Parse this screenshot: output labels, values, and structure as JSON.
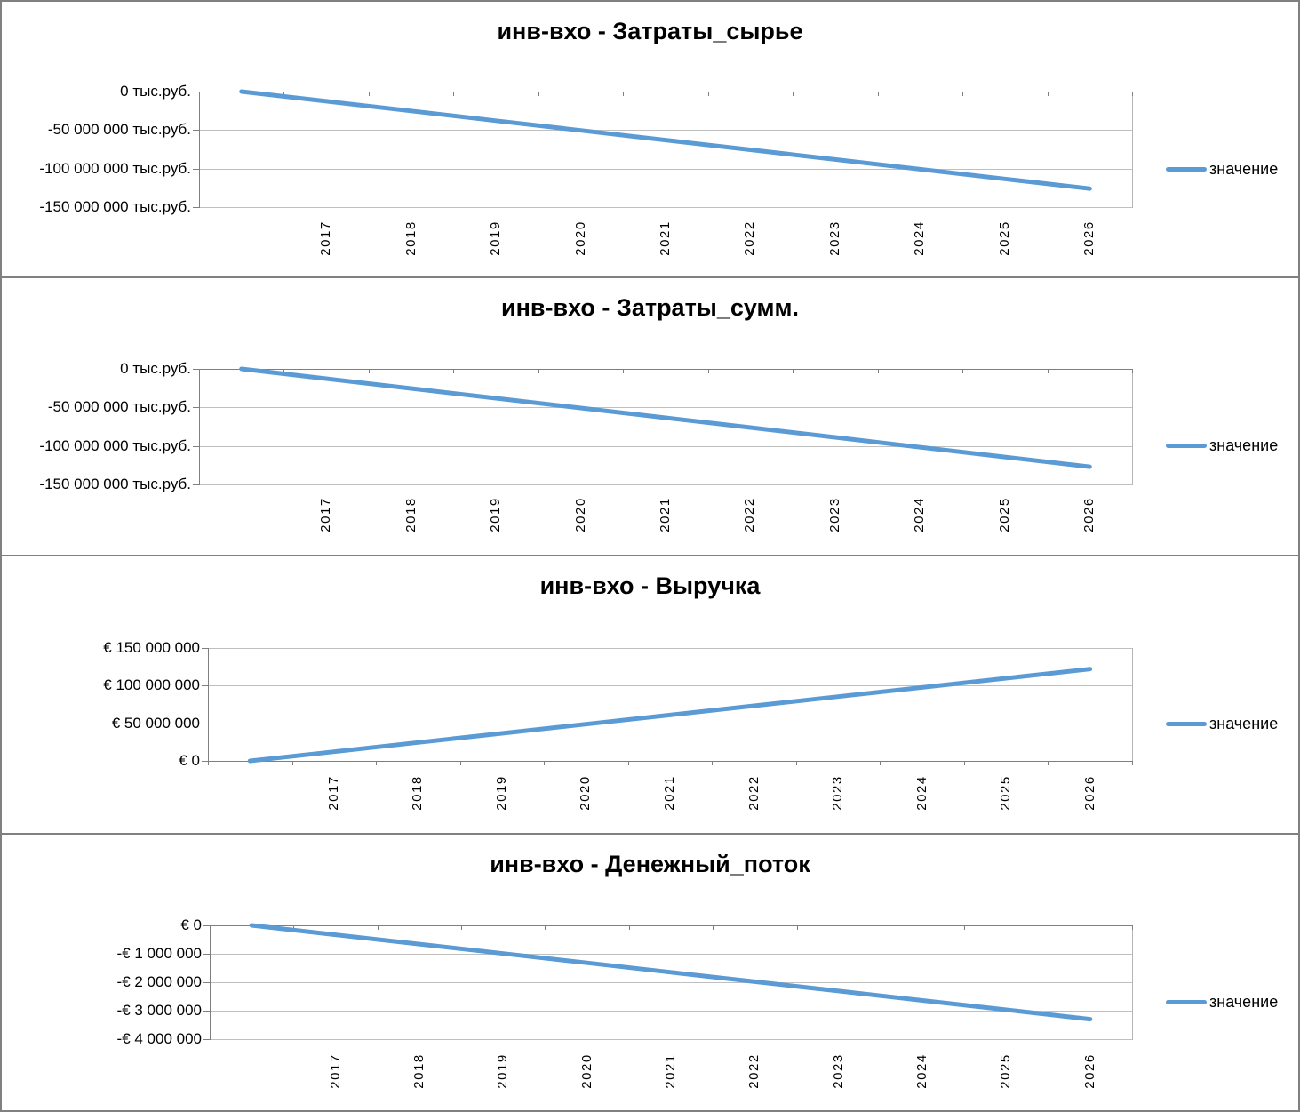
{
  "colors": {
    "series_line": "#5b9bd5",
    "gridline": "#bfbfbf",
    "axis": "#7f7f7f",
    "text": "#000000"
  },
  "chart_data": [
    {
      "type": "line",
      "title": "инв-вхо - Затраты_сырье",
      "legend_label": "значение",
      "legend_position": "right",
      "grid": true,
      "y_unit": "тыс.руб.",
      "ylim": [
        -150000000,
        0
      ],
      "categories": [
        "",
        "2017",
        "2018",
        "2019",
        "2020",
        "2021",
        "2022",
        "2023",
        "2024",
        "2025",
        "2026"
      ],
      "y_ticks": [
        {
          "label": "0 тыс.руб.",
          "value": 0
        },
        {
          "label": "-50 000 000 тыс.руб.",
          "value": -50000000
        },
        {
          "label": "-100 000 000 тыс.руб.",
          "value": -100000000
        },
        {
          "label": "-150 000 000 тыс.руб.",
          "value": -150000000
        }
      ],
      "series": [
        {
          "name": "значение",
          "values": [
            0,
            -12600000,
            -25200000,
            -37800000,
            -50400000,
            -63000000,
            -75600000,
            -88200000,
            -100800000,
            -113400000,
            -126000000
          ]
        }
      ]
    },
    {
      "type": "line",
      "title": "инв-вхо - Затраты_сумм.",
      "legend_label": "значение",
      "legend_position": "right",
      "grid": true,
      "y_unit": "тыс.руб.",
      "ylim": [
        -150000000,
        0
      ],
      "categories": [
        "",
        "2017",
        "2018",
        "2019",
        "2020",
        "2021",
        "2022",
        "2023",
        "2024",
        "2025",
        "2026"
      ],
      "y_ticks": [
        {
          "label": "0 тыс.руб.",
          "value": 0
        },
        {
          "label": "-50 000 000 тыс.руб.",
          "value": -50000000
        },
        {
          "label": "-100 000 000 тыс.руб.",
          "value": -100000000
        },
        {
          "label": "-150 000 000 тыс.руб.",
          "value": -150000000
        }
      ],
      "series": [
        {
          "name": "значение",
          "values": [
            0,
            -12700000,
            -25400000,
            -38100000,
            -50800000,
            -63500000,
            -76200000,
            -88900000,
            -101600000,
            -114300000,
            -127000000
          ]
        }
      ]
    },
    {
      "type": "line",
      "title": "инв-вхо - Выручка",
      "legend_label": "значение",
      "legend_position": "right",
      "grid": true,
      "y_unit": "€",
      "ylim": [
        0,
        150000000
      ],
      "categories": [
        "",
        "2017",
        "2018",
        "2019",
        "2020",
        "2021",
        "2022",
        "2023",
        "2024",
        "2025",
        "2026"
      ],
      "y_ticks": [
        {
          "label": "€ 150 000 000",
          "value": 150000000
        },
        {
          "label": "€ 100 000 000",
          "value": 100000000
        },
        {
          "label": "€ 50 000 000",
          "value": 50000000
        },
        {
          "label": "€ 0",
          "value": 0
        }
      ],
      "series": [
        {
          "name": "значение",
          "values": [
            0,
            12200000,
            24400000,
            36600000,
            48800000,
            61000000,
            73200000,
            85400000,
            97600000,
            109800000,
            122000000
          ]
        }
      ]
    },
    {
      "type": "line",
      "title": "инв-вхо - Денежный_поток",
      "legend_label": "значение",
      "legend_position": "right",
      "grid": true,
      "y_unit": "€",
      "ylim": [
        -4000000,
        0
      ],
      "categories": [
        "",
        "2017",
        "2018",
        "2019",
        "2020",
        "2021",
        "2022",
        "2023",
        "2024",
        "2025",
        "2026"
      ],
      "y_ticks": [
        {
          "label": "€ 0",
          "value": 0
        },
        {
          "label": "-€ 1 000 000",
          "value": -1000000
        },
        {
          "label": "-€ 2 000 000",
          "value": -2000000
        },
        {
          "label": "-€ 3 000 000",
          "value": -3000000
        },
        {
          "label": "-€ 4 000 000",
          "value": -4000000
        }
      ],
      "series": [
        {
          "name": "значение",
          "values": [
            0,
            -330000,
            -660000,
            -990000,
            -1320000,
            -1650000,
            -1980000,
            -2310000,
            -2640000,
            -2970000,
            -3300000
          ]
        }
      ]
    }
  ]
}
